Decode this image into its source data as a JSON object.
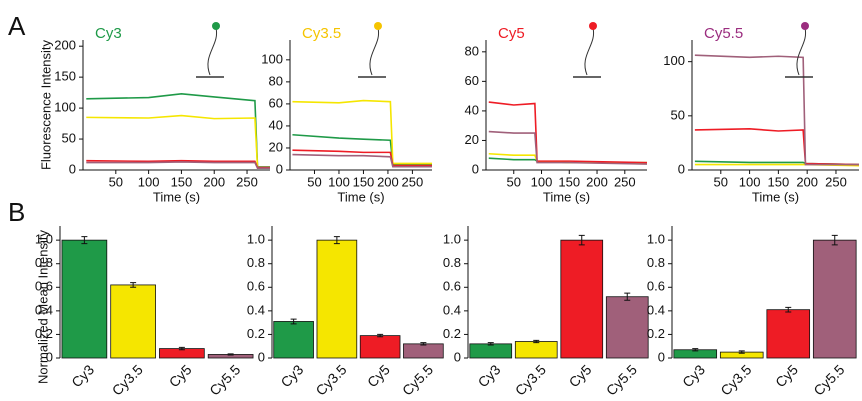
{
  "chart_data": [
    {
      "type": "line",
      "panel_label": "A",
      "ylabel": "Fluorescence Intensity",
      "title": "Cy3",
      "title_color": "#1f9a48",
      "xlabel": "Time (s)",
      "xlim": [
        0,
        285
      ],
      "xticks": [
        50,
        100,
        150,
        200,
        250
      ],
      "ylim": [
        0,
        210
      ],
      "yticks": [
        0,
        50,
        100,
        150,
        200
      ],
      "x": [
        5,
        100,
        150,
        200,
        262,
        266,
        285
      ],
      "series": [
        {
          "color": "#1f9a48",
          "values": [
            115,
            117,
            123,
            118,
            112,
            5,
            5
          ]
        },
        {
          "color": "#f5e600",
          "values": [
            85,
            84,
            88,
            83,
            84,
            4,
            4
          ]
        },
        {
          "color": "#ee1c25",
          "values": [
            15,
            14,
            15,
            14,
            14,
            4,
            4
          ]
        },
        {
          "color": "#a0607a",
          "values": [
            12,
            12,
            13,
            12,
            12,
            3,
            3
          ]
        }
      ]
    },
    {
      "type": "line",
      "title": "Cy3.5",
      "title_color": "#f5c400",
      "xlabel": "Time (s)",
      "xlim": [
        0,
        290
      ],
      "xticks": [
        50,
        100,
        150,
        200,
        250
      ],
      "ylim": [
        0,
        118
      ],
      "yticks": [
        0,
        20,
        40,
        60,
        80,
        100
      ],
      "x": [
        5,
        100,
        150,
        205,
        210,
        290
      ],
      "series": [
        {
          "color": "#1f9a48",
          "values": [
            32,
            29,
            28,
            27,
            5,
            5
          ]
        },
        {
          "color": "#f5e600",
          "values": [
            62,
            61,
            63,
            62,
            6,
            6
          ]
        },
        {
          "color": "#ee1c25",
          "values": [
            18,
            17,
            16,
            16,
            4,
            4
          ]
        },
        {
          "color": "#a0607a",
          "values": [
            14,
            13,
            13,
            12,
            3,
            3
          ]
        }
      ]
    },
    {
      "type": "line",
      "title": "Cy5",
      "title_color": "#ee1c25",
      "xlabel": "Time (s)",
      "xlim": [
        0,
        290
      ],
      "xticks": [
        50,
        100,
        150,
        200,
        250
      ],
      "ylim": [
        0,
        88
      ],
      "yticks": [
        0,
        20,
        40,
        60,
        80
      ],
      "x": [
        5,
        50,
        88,
        92,
        150,
        290
      ],
      "series": [
        {
          "color": "#1f9a48",
          "values": [
            8,
            7,
            7,
            6,
            5,
            5
          ]
        },
        {
          "color": "#f5e600",
          "values": [
            11,
            10,
            10,
            6,
            5,
            5
          ]
        },
        {
          "color": "#ee1c25",
          "values": [
            46,
            44,
            45,
            6,
            6,
            5
          ]
        },
        {
          "color": "#a0607a",
          "values": [
            26,
            25,
            25,
            5,
            5,
            4
          ]
        }
      ]
    },
    {
      "type": "line",
      "title": "Cy5.5",
      "title_color": "#9b2d7f",
      "xlabel": "Time (s)",
      "xlim": [
        0,
        290
      ],
      "xticks": [
        50,
        100,
        150,
        200,
        250
      ],
      "ylim": [
        0,
        120
      ],
      "yticks": [
        0,
        50,
        100
      ],
      "x": [
        5,
        100,
        150,
        193,
        197,
        290
      ],
      "series": [
        {
          "color": "#1f9a48",
          "values": [
            8,
            7,
            7,
            7,
            6,
            5
          ]
        },
        {
          "color": "#f5e600",
          "values": [
            5,
            5,
            5,
            5,
            5,
            4
          ]
        },
        {
          "color": "#ee1c25",
          "values": [
            37,
            38,
            36,
            37,
            6,
            5
          ]
        },
        {
          "color": "#a0607a",
          "values": [
            106,
            104,
            105,
            104,
            5,
            5
          ]
        }
      ]
    },
    {
      "type": "bar",
      "panel_label": "B",
      "ylabel": "Normalized Mean Intensity",
      "categories": [
        "Cy3",
        "Cy3.5",
        "Cy5",
        "Cy5.5"
      ],
      "colors": [
        "#1f9a48",
        "#f5e600",
        "#ee1c25",
        "#a0607a"
      ],
      "values": [
        1.0,
        0.62,
        0.08,
        0.03
      ],
      "errors": [
        0.03,
        0.02,
        0.01,
        0.005
      ],
      "ylim": [
        0,
        1.12
      ],
      "yticks": [
        0,
        0.2,
        0.4,
        0.6,
        0.8,
        {
          "value": 1,
          "label": "1.0"
        }
      ]
    },
    {
      "type": "bar",
      "categories": [
        "Cy3",
        "Cy3.5",
        "Cy5",
        "Cy5.5"
      ],
      "colors": [
        "#1f9a48",
        "#f5e600",
        "#ee1c25",
        "#a0607a"
      ],
      "values": [
        0.31,
        1.0,
        0.19,
        0.12
      ],
      "errors": [
        0.02,
        0.03,
        0.01,
        0.01
      ],
      "ylim": [
        0,
        1.12
      ],
      "yticks": [
        0,
        0.2,
        0.4,
        0.6,
        0.8,
        {
          "value": 1,
          "label": "1.0"
        }
      ]
    },
    {
      "type": "bar",
      "categories": [
        "Cy3",
        "Cy3.5",
        "Cy5",
        "Cy5.5"
      ],
      "colors": [
        "#1f9a48",
        "#f5e600",
        "#ee1c25",
        "#a0607a"
      ],
      "values": [
        0.12,
        0.14,
        1.0,
        0.52
      ],
      "errors": [
        0.01,
        0.01,
        0.04,
        0.03
      ],
      "ylim": [
        0,
        1.12
      ],
      "yticks": [
        0,
        0.2,
        0.4,
        0.6,
        0.8,
        {
          "value": 1,
          "label": "1.0"
        }
      ]
    },
    {
      "type": "bar",
      "categories": [
        "Cy3",
        "Cy3.5",
        "Cy5",
        "Cy5.5"
      ],
      "colors": [
        "#1f9a48",
        "#f5e600",
        "#ee1c25",
        "#a0607a"
      ],
      "values": [
        0.07,
        0.05,
        0.41,
        1.0
      ],
      "errors": [
        0.01,
        0.01,
        0.02,
        0.04
      ],
      "ylim": [
        0,
        1.12
      ],
      "yticks": [
        0,
        0.2,
        0.4,
        0.6,
        0.8,
        {
          "value": 1,
          "label": "1.0"
        }
      ]
    }
  ]
}
